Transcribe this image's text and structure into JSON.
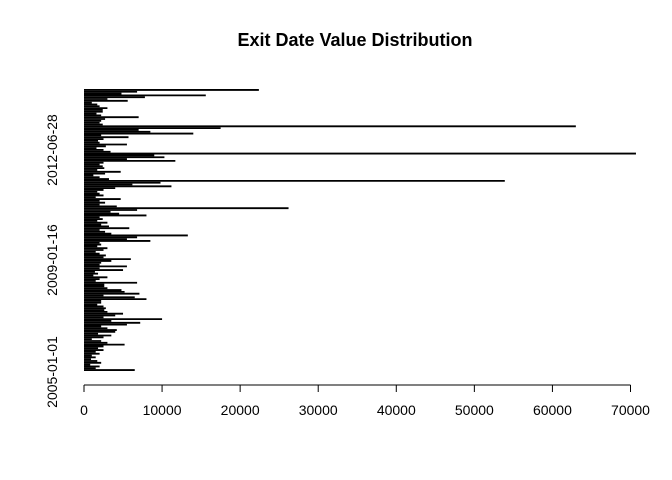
{
  "chart_data": {
    "type": "bar",
    "orientation": "horizontal",
    "title": "Exit Date Value Distribution",
    "xlabel": "",
    "ylabel": "",
    "xlim": [
      0,
      70000
    ],
    "x_ticks": [
      0,
      10000,
      20000,
      30000,
      40000,
      50000,
      60000,
      70000
    ],
    "x_tick_labels": [
      "0",
      "10000",
      "20000",
      "30000",
      "40000",
      "50000",
      "60000",
      "70000"
    ],
    "y_tick_labels": [
      "2005-01-01",
      "2009-01-16",
      "2012-06-28"
    ],
    "grid": false,
    "legend": "none",
    "bar_color": "#000000",
    "values": [
      6500,
      1500,
      2000,
      800,
      2200,
      1700,
      900,
      1500,
      1000,
      2000,
      1500,
      2500,
      1800,
      2500,
      5200,
      3000,
      2200,
      1000,
      2500,
      3500,
      1800,
      4000,
      4200,
      3000,
      2200,
      5500,
      7200,
      3500,
      10000,
      2500,
      4000,
      5000,
      3000,
      2600,
      2800,
      2500,
      1700,
      2200,
      2200,
      8000,
      6500,
      2500,
      7100,
      5200,
      4800,
      3000,
      2600,
      2600,
      6800,
      1500,
      2000,
      3000,
      1200,
      1800,
      1400,
      5000,
      2000,
      5500,
      2000,
      2200,
      3500,
      6000,
      2500,
      2800,
      2000,
      1500,
      2500,
      3000,
      1700,
      2200,
      2000,
      8500,
      5500,
      6800,
      13300,
      3500,
      2700,
      2000,
      5800,
      3200,
      2200,
      3000,
      1700,
      2400,
      2000,
      8000,
      4500,
      3400,
      6800,
      26200,
      4200,
      2000,
      2700,
      2000,
      4700,
      1500,
      2500,
      2000,
      1700,
      2500,
      4000,
      11200,
      6200,
      9800,
      53900,
      3200,
      2000,
      1200,
      2700,
      4700,
      1700,
      2600,
      2400,
      2000,
      2500,
      11700,
      5500,
      10300,
      9000,
      70700,
      3400,
      2500,
      1600,
      2800,
      5500,
      2000,
      1800,
      2500,
      5700,
      2200,
      14000,
      8500,
      7000,
      17500,
      63000,
      2400,
      2000,
      2200,
      2700,
      7000,
      2200,
      1600,
      2400,
      2400,
      3000,
      2000,
      1700,
      1000,
      5600,
      3000,
      7800,
      15600,
      4800,
      6800,
      22400
    ]
  }
}
